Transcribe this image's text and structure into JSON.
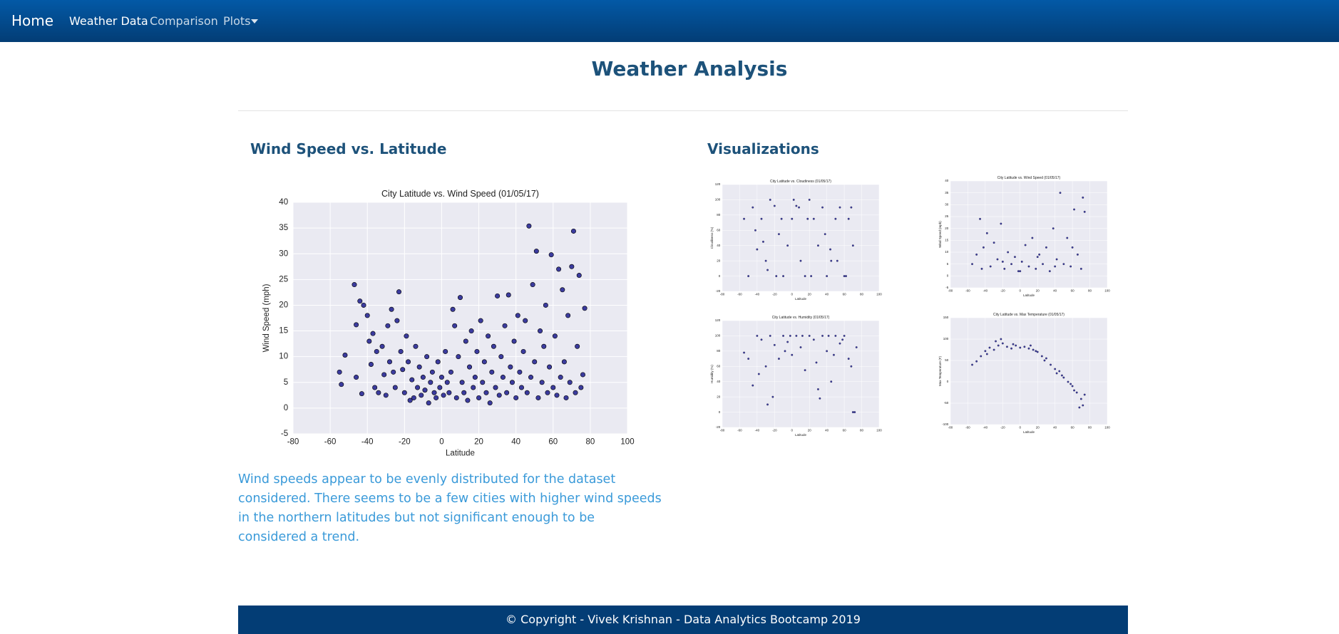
{
  "nav": {
    "brand": "Home",
    "links": [
      "Weather Data",
      "Comparison",
      "Plots"
    ]
  },
  "header": {
    "title": "Weather Analysis"
  },
  "main_section": {
    "heading": "Wind Speed vs. Latitude",
    "description": "Wind speeds appear to be evenly distributed for the dataset considered. There seems to be a few cities with higher wind speeds in the northern latitudes but not significant enough to be considered a trend."
  },
  "side_section": {
    "heading": "Visualizations"
  },
  "footer": {
    "text": "© Copyright - Vivek Krishnan - Data Analytics Bootcamp 2019"
  },
  "chart_data": [
    {
      "type": "scatter",
      "title": "City Latitude vs. Wind Speed (01/05/17)",
      "xlabel": "Latitude",
      "ylabel": "Wind Speed (mph)",
      "color": "#1c1c8f",
      "grid": true,
      "xlim": [
        -80,
        100
      ],
      "xticks": [
        -80,
        -60,
        -40,
        -20,
        0,
        20,
        40,
        60,
        80,
        100
      ],
      "ylim": [
        -5,
        40
      ],
      "yticks": [
        -5,
        0,
        5,
        10,
        15,
        20,
        25,
        30,
        35,
        40
      ],
      "x": [
        -55,
        -54,
        -52,
        -47,
        -46,
        -46,
        -44,
        -43,
        -42,
        -40,
        -39,
        -38,
        -37,
        -36,
        -35,
        -34,
        -32,
        -31,
        -30,
        -29,
        -28,
        -27,
        -26,
        -25,
        -24,
        -23,
        -22,
        -21,
        -20,
        -19,
        -18,
        -17,
        -16,
        -15,
        -14,
        -13,
        -12,
        -11,
        -10,
        -9,
        -8,
        -7,
        -6,
        -5,
        -4,
        -3,
        -2,
        -1,
        0,
        1,
        2,
        3,
        4,
        5,
        6,
        7,
        8,
        9,
        10,
        11,
        12,
        13,
        14,
        15,
        16,
        17,
        18,
        19,
        20,
        21,
        22,
        23,
        24,
        25,
        26,
        27,
        28,
        29,
        30,
        31,
        32,
        33,
        34,
        35,
        36,
        37,
        38,
        39,
        40,
        41,
        42,
        43,
        44,
        45,
        46,
        47,
        48,
        49,
        50,
        51,
        52,
        53,
        54,
        55,
        56,
        57,
        58,
        59,
        60,
        61,
        62,
        63,
        64,
        65,
        66,
        67,
        68,
        69,
        70,
        71,
        72,
        73,
        74,
        75,
        76,
        77
      ],
      "y": [
        7,
        4.6,
        10.3,
        24,
        16.2,
        6,
        20.8,
        2.8,
        20,
        18,
        13,
        8.5,
        14.5,
        4,
        11,
        3,
        12,
        6.5,
        2.5,
        16,
        9,
        19.2,
        7,
        4,
        17,
        22.6,
        11,
        7.5,
        3,
        14,
        9,
        1.5,
        5.5,
        2,
        12,
        4,
        8,
        2.5,
        6,
        3.5,
        10,
        1,
        5,
        7,
        3,
        2,
        9,
        4,
        6,
        2.5,
        11,
        5,
        3,
        7,
        19.2,
        16,
        2,
        10,
        21.5,
        5,
        3,
        13,
        1.5,
        8,
        15,
        4,
        6,
        11,
        2,
        17,
        5,
        9,
        3,
        14,
        1,
        7,
        12,
        4,
        21.8,
        2.5,
        10,
        6,
        16,
        3,
        22,
        8,
        5,
        13,
        2,
        18,
        7,
        4,
        11,
        17,
        3,
        35.4,
        6,
        24,
        9,
        30.5,
        2,
        15,
        5,
        12,
        20,
        3,
        8,
        29.8,
        4,
        14,
        2.5,
        27,
        6,
        23,
        9,
        2,
        18,
        5,
        27.5,
        34.4,
        3,
        12,
        25.8,
        4,
        6.5,
        19.4
      ]
    },
    {
      "type": "scatter",
      "title": "City Latitude vs. Cloudiness (01/05/17)",
      "xlabel": "Latitude",
      "ylabel": "Cloudiness (%)",
      "color": "#1c1c8f",
      "grid": true,
      "xlim": [
        -80,
        100
      ],
      "xticks": [
        -80,
        -60,
        -40,
        -20,
        0,
        20,
        40,
        60,
        80,
        100
      ],
      "ylim": [
        -20,
        120
      ],
      "yticks": [
        -20,
        0,
        20,
        40,
        60,
        80,
        100,
        120
      ],
      "x": [
        -55,
        -50,
        -45,
        -40,
        -35,
        -30,
        -25,
        -20,
        -15,
        -10,
        -5,
        0,
        5,
        10,
        15,
        20,
        25,
        30,
        35,
        40,
        45,
        50,
        55,
        60,
        65,
        70,
        -42,
        -28,
        -12,
        8,
        22,
        38,
        52,
        68,
        -33,
        -18,
        2,
        18,
        44,
        62
      ],
      "y": [
        75,
        0,
        90,
        35,
        75,
        20,
        100,
        92,
        55,
        0,
        40,
        75,
        92,
        20,
        0,
        100,
        75,
        40,
        90,
        0,
        20,
        75,
        90,
        0,
        75,
        40,
        60,
        8,
        75,
        90,
        0,
        55,
        20,
        90,
        45,
        0,
        100,
        75,
        35,
        0
      ]
    },
    {
      "type": "scatter",
      "title": "City Latitude vs. Wind Speed (01/05/17)",
      "xlabel": "Latitude",
      "ylabel": "Wind Speed (mph)",
      "color": "#1c1c8f",
      "grid": true,
      "xlim": [
        -80,
        100
      ],
      "xticks": [
        -80,
        -60,
        -40,
        -20,
        0,
        20,
        40,
        60,
        80,
        100
      ],
      "ylim": [
        -5,
        40
      ],
      "yticks": [
        -5,
        0,
        5,
        10,
        15,
        20,
        25,
        30,
        35,
        40
      ],
      "x": [
        -55,
        -50,
        -46,
        -42,
        -38,
        -34,
        -30,
        -26,
        -22,
        -18,
        -14,
        -10,
        -6,
        -2,
        2,
        6,
        10,
        14,
        18,
        22,
        26,
        30,
        34,
        38,
        42,
        46,
        50,
        54,
        58,
        62,
        66,
        70,
        74,
        -44,
        -20,
        0,
        20,
        40,
        60,
        72
      ],
      "y": [
        5,
        9,
        24,
        12,
        18,
        4,
        14,
        7,
        22,
        3,
        10,
        5,
        8,
        2,
        6,
        13,
        4,
        16,
        3,
        9,
        5,
        12,
        2,
        20,
        7,
        35,
        5,
        16,
        4,
        28,
        9,
        3,
        27,
        3,
        6,
        2,
        8,
        4,
        12,
        33
      ]
    },
    {
      "type": "scatter",
      "title": "City Latitude vs. Humidity (01/05/17)",
      "xlabel": "Latitude",
      "ylabel": "Humidity (%)",
      "color": "#1c1c8f",
      "grid": true,
      "xlim": [
        -80,
        100
      ],
      "xticks": [
        -80,
        -60,
        -40,
        -20,
        0,
        20,
        40,
        60,
        80,
        100
      ],
      "ylim": [
        -20,
        120
      ],
      "yticks": [
        -20,
        0,
        20,
        40,
        60,
        80,
        100,
        120
      ],
      "x": [
        -55,
        -50,
        -45,
        -40,
        -35,
        -30,
        -25,
        -20,
        -15,
        -10,
        -5,
        0,
        5,
        10,
        15,
        20,
        25,
        30,
        35,
        40,
        45,
        50,
        55,
        60,
        65,
        70,
        72,
        74,
        -38,
        -22,
        -8,
        12,
        28,
        42,
        58,
        68,
        -28,
        -2,
        32,
        48
      ],
      "y": [
        78,
        70,
        35,
        100,
        95,
        60,
        100,
        88,
        70,
        100,
        92,
        75,
        100,
        85,
        55,
        100,
        95,
        30,
        100,
        80,
        40,
        100,
        90,
        100,
        70,
        0,
        0,
        85,
        50,
        20,
        80,
        100,
        65,
        100,
        95,
        60,
        10,
        100,
        18,
        75
      ]
    },
    {
      "type": "scatter",
      "title": "City Latitude vs. Max Temperature (01/05/17)",
      "xlabel": "Latitude",
      "ylabel": "Max Temperature (F)",
      "color": "#1c1c8f",
      "grid": true,
      "xlim": [
        -80,
        100
      ],
      "xticks": [
        -80,
        -60,
        -40,
        -20,
        0,
        20,
        40,
        60,
        80,
        100
      ],
      "ylim": [
        -100,
        150
      ],
      "yticks": [
        -100,
        -50,
        0,
        50,
        100,
        150
      ],
      "x": [
        -55,
        -50,
        -45,
        -40,
        -35,
        -30,
        -25,
        -20,
        -15,
        -10,
        -5,
        0,
        5,
        10,
        15,
        20,
        25,
        30,
        35,
        40,
        45,
        50,
        55,
        60,
        65,
        70,
        72,
        74,
        -38,
        -22,
        -8,
        12,
        28,
        42,
        58,
        68,
        -28,
        18,
        48,
        62
      ],
      "y": [
        40,
        48,
        60,
        72,
        80,
        75,
        85,
        90,
        82,
        78,
        85,
        80,
        82,
        78,
        75,
        70,
        60,
        55,
        40,
        30,
        25,
        10,
        0,
        -10,
        -25,
        -40,
        -55,
        -30,
        65,
        100,
        88,
        85,
        50,
        20,
        -5,
        -60,
        95,
        72,
        15,
        -20
      ]
    }
  ]
}
